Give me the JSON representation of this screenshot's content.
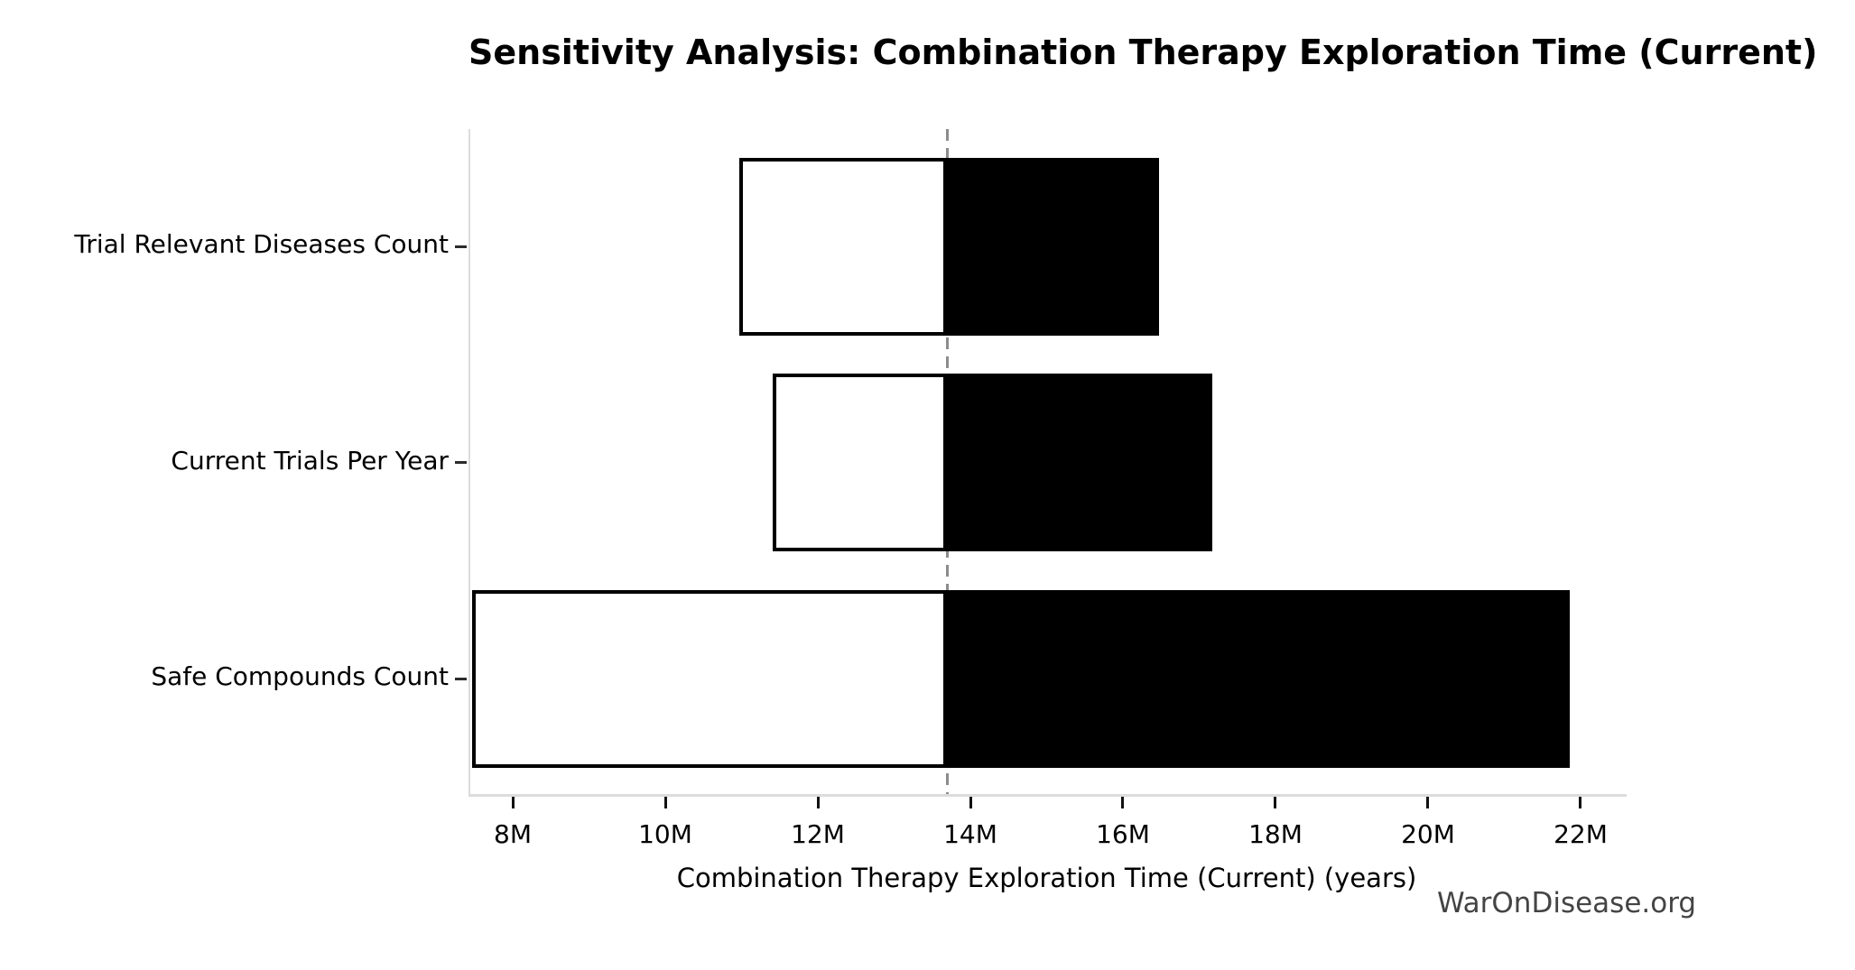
{
  "page": {
    "background": "#ffffff"
  },
  "watermark": "WarOnDisease.org",
  "chart_data": {
    "type": "bar",
    "orientation": "horizontal",
    "variant": "tornado-sensitivity",
    "title": "Sensitivity Analysis: Combination Therapy Exploration Time (Current)",
    "xlabel": "Combination Therapy Exploration Time (Current) (years)",
    "ylabel": "",
    "categories": [
      "Trial Relevant Diseases Count",
      "Current Trials Per Year",
      "Safe Compounds Count"
    ],
    "baseline": 13.67,
    "unit_suffix": "M",
    "series": [
      {
        "name": "low",
        "fill": "#ffffff",
        "values": [
          10.95,
          11.38,
          7.44
        ]
      },
      {
        "name": "high",
        "fill": "#000000",
        "values": [
          16.45,
          17.15,
          21.83
        ]
      }
    ],
    "x_tick_values": [
      8,
      10,
      12,
      14,
      16,
      18,
      20,
      22
    ],
    "x_tick_labels": [
      "8M",
      "10M",
      "12M",
      "14M",
      "16M",
      "18M",
      "20M",
      "22M"
    ],
    "xlim": [
      7.42,
      22.58
    ],
    "grid": false,
    "legend": false,
    "bar_edge_color": "#000000",
    "baseline_line_color": "#8c8c8c",
    "baseline_line_style": "dashed",
    "axis_spine_color": "#dcdcdc",
    "tick_color": "#111111",
    "watermark_color": "#444444"
  }
}
